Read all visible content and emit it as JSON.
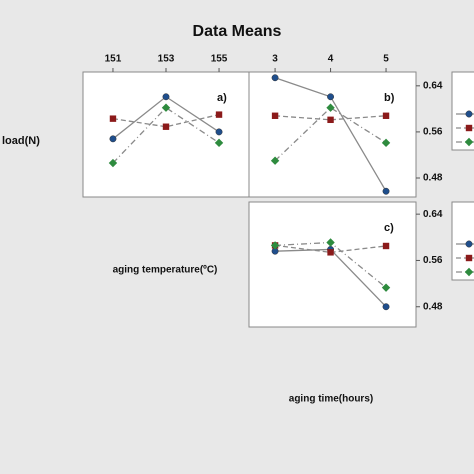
{
  "title": "Data Means",
  "ylabel": "load(N)",
  "chart_data": [
    {
      "type": "line",
      "label": "a)",
      "xlabel": "aging temperature(ºC)",
      "x": [
        151,
        153,
        155
      ],
      "xlim": [
        149.87,
        156.13
      ],
      "xticks": [
        151,
        153,
        155
      ],
      "ylim": [
        0.447,
        0.664
      ],
      "series": [
        {
          "color": "#1f4e8c",
          "marker": "circle",
          "linestyle": "solid",
          "values": [
            0.548,
            0.621,
            0.56
          ]
        },
        {
          "color": "#8b1a1a",
          "marker": "square",
          "linestyle": "dashed",
          "values": [
            0.583,
            0.569,
            0.59
          ]
        },
        {
          "color": "#2e8b3e",
          "marker": "diamond",
          "linestyle": "dashdot",
          "values": [
            0.506,
            0.602,
            0.541
          ]
        }
      ]
    },
    {
      "type": "line",
      "label": "b)",
      "x": [
        3,
        4,
        5
      ],
      "xlim": [
        2.53,
        5.54
      ],
      "xticks": [
        3,
        4,
        5
      ],
      "ylim": [
        0.447,
        0.664
      ],
      "yticks": [
        0.64,
        0.56,
        0.48
      ],
      "legend": "right",
      "series": [
        {
          "color": "#1f4e8c",
          "marker": "circle",
          "linestyle": "solid",
          "values": [
            0.654,
            0.621,
            0.457
          ]
        },
        {
          "color": "#8b1a1a",
          "marker": "square",
          "linestyle": "dashed",
          "values": [
            0.588,
            0.581,
            0.588
          ]
        },
        {
          "color": "#2e8b3e",
          "marker": "diamond",
          "linestyle": "dashdot",
          "values": [
            0.51,
            0.602,
            0.541
          ]
        }
      ]
    },
    {
      "type": "line",
      "label": "c)",
      "xlabel": "aging time(hours)",
      "x": [
        3,
        4,
        5
      ],
      "xlim": [
        2.53,
        5.54
      ],
      "ylim": [
        0.445,
        0.661
      ],
      "yticks": [
        0.64,
        0.56,
        0.48
      ],
      "legend": "right",
      "series": [
        {
          "color": "#1f4e8c",
          "marker": "circle",
          "linestyle": "solid",
          "values": [
            0.576,
            0.579,
            0.48
          ]
        },
        {
          "color": "#8b1a1a",
          "marker": "square",
          "linestyle": "dashed",
          "values": [
            0.586,
            0.574,
            0.585
          ]
        },
        {
          "color": "#2e8b3e",
          "marker": "diamond",
          "linestyle": "dashdot",
          "values": [
            0.586,
            0.591,
            0.513
          ]
        }
      ]
    }
  ]
}
